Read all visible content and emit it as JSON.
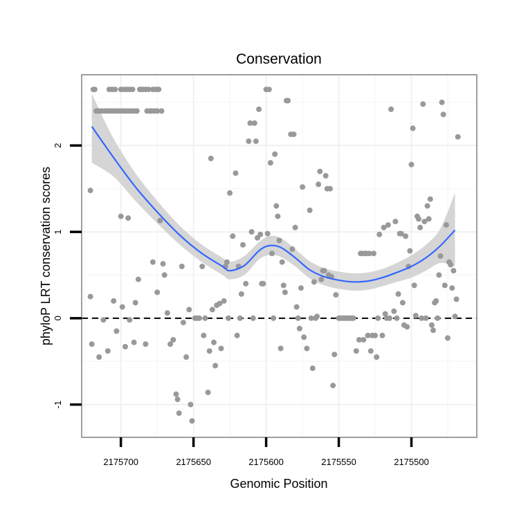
{
  "chart_data": {
    "type": "scatter",
    "title": "Conservation",
    "xlabel": "Genomic Position",
    "ylabel": "phyloP LRT conservation scores",
    "x_reversed": true,
    "xlim": [
      2175727,
      2175455
    ],
    "ylim": [
      -1.38,
      2.82
    ],
    "x_ticks": [
      2175700,
      2175650,
      2175600,
      2175550,
      2175500
    ],
    "x_tick_labels": [
      "2175700",
      "2175650",
      "2175600",
      "2175550",
      "2175500"
    ],
    "y_ticks": [
      -1,
      0,
      1,
      2
    ],
    "y_tick_labels": [
      "-1",
      "0",
      "1",
      "2"
    ],
    "grid": true,
    "reference_line": {
      "y": 0,
      "style": "dashed"
    },
    "colors": {
      "points": "#999999",
      "smooth": "#3366ff",
      "band": "#d3d3d3",
      "grid": "#f0f0f0",
      "panel_border": "#7f7f7f",
      "reference_line": "#000000"
    },
    "points": [
      [
        2175719,
        2.65
      ],
      [
        2175718,
        2.65
      ],
      [
        2175717,
        2.4
      ],
      [
        2175716,
        2.4
      ],
      [
        2175715,
        2.4
      ],
      [
        2175713,
        2.4
      ],
      [
        2175711,
        2.4
      ],
      [
        2175709,
        2.4
      ],
      [
        2175708,
        2.65
      ],
      [
        2175707,
        2.4
      ],
      [
        2175706,
        2.65
      ],
      [
        2175705,
        2.4
      ],
      [
        2175704,
        2.65
      ],
      [
        2175703,
        2.4
      ],
      [
        2175701,
        2.4
      ],
      [
        2175700,
        2.65
      ],
      [
        2175699,
        2.4
      ],
      [
        2175698,
        2.65
      ],
      [
        2175697,
        2.4
      ],
      [
        2175696,
        2.65
      ],
      [
        2175695,
        2.4
      ],
      [
        2175694,
        2.65
      ],
      [
        2175693,
        2.4
      ],
      [
        2175692,
        2.65
      ],
      [
        2175691,
        2.4
      ],
      [
        2175689,
        2.4
      ],
      [
        2175687,
        2.65
      ],
      [
        2175686,
        2.65
      ],
      [
        2175685,
        2.65
      ],
      [
        2175683,
        2.65
      ],
      [
        2175682,
        2.4
      ],
      [
        2175681,
        2.65
      ],
      [
        2175680,
        2.4
      ],
      [
        2175679,
        2.4
      ],
      [
        2175678,
        2.65
      ],
      [
        2175677,
        2.4
      ],
      [
        2175676,
        2.65
      ],
      [
        2175675,
        2.4
      ],
      [
        2175674,
        2.65
      ],
      [
        2175672,
        2.4
      ],
      [
        2175721,
        1.48
      ],
      [
        2175721,
        0.25
      ],
      [
        2175720,
        -0.3
      ],
      [
        2175715,
        -0.45
      ],
      [
        2175712,
        -0.02
      ],
      [
        2175709,
        -0.38
      ],
      [
        2175705,
        0.2
      ],
      [
        2175703,
        -0.15
      ],
      [
        2175700,
        1.18
      ],
      [
        2175699,
        0.13
      ],
      [
        2175697,
        -0.33
      ],
      [
        2175695,
        1.16
      ],
      [
        2175694,
        -0.02
      ],
      [
        2175690,
        0.18
      ],
      [
        2175691,
        -0.28
      ],
      [
        2175688,
        0.45
      ],
      [
        2175683,
        -0.3
      ],
      [
        2175678,
        0.65
      ],
      [
        2175675,
        0.3
      ],
      [
        2175673,
        1.13
      ],
      [
        2175671,
        0.63
      ],
      [
        2175670,
        0.5
      ],
      [
        2175668,
        0.06
      ],
      [
        2175666,
        -0.3
      ],
      [
        2175664,
        -0.25
      ],
      [
        2175662,
        -0.88
      ],
      [
        2175661,
        -0.94
      ],
      [
        2175660,
        -1.1
      ],
      [
        2175658,
        0.6
      ],
      [
        2175657,
        -0.05
      ],
      [
        2175655,
        -0.45
      ],
      [
        2175653,
        0.1
      ],
      [
        2175652,
        -1.0
      ],
      [
        2175651,
        -1.19
      ],
      [
        2175649,
        0.0
      ],
      [
        2175648,
        0.0
      ],
      [
        2175647,
        0.0
      ],
      [
        2175646,
        0.0
      ],
      [
        2175644,
        0.6
      ],
      [
        2175643,
        -0.2
      ],
      [
        2175642,
        0.0
      ],
      [
        2175640,
        -0.86
      ],
      [
        2175639,
        -0.38
      ],
      [
        2175638,
        1.85
      ],
      [
        2175637,
        0.1
      ],
      [
        2175636,
        -0.28
      ],
      [
        2175635,
        -0.55
      ],
      [
        2175634,
        0.15
      ],
      [
        2175632,
        0.17
      ],
      [
        2175631,
        -0.35
      ],
      [
        2175629,
        0.2
      ],
      [
        2175628,
        0.6
      ],
      [
        2175627,
        0.65
      ],
      [
        2175626,
        0.0
      ],
      [
        2175625,
        1.45
      ],
      [
        2175623,
        0.95
      ],
      [
        2175621,
        1.68
      ],
      [
        2175620,
        -0.2
      ],
      [
        2175619,
        0.6
      ],
      [
        2175618,
        0.0
      ],
      [
        2175617,
        0.28
      ],
      [
        2175616,
        0.85
      ],
      [
        2175614,
        0.4
      ],
      [
        2175612,
        2.05
      ],
      [
        2175611,
        2.26
      ],
      [
        2175610,
        1.0
      ],
      [
        2175609,
        0.0
      ],
      [
        2175608,
        2.26
      ],
      [
        2175607,
        2.05
      ],
      [
        2175606,
        0.93
      ],
      [
        2175605,
        2.42
      ],
      [
        2175604,
        0.97
      ],
      [
        2175603,
        0.4
      ],
      [
        2175602,
        0.4
      ],
      [
        2175600,
        2.65
      ],
      [
        2175599,
        0.98
      ],
      [
        2175598,
        2.65
      ],
      [
        2175597,
        1.8
      ],
      [
        2175596,
        0.75
      ],
      [
        2175595,
        0.0
      ],
      [
        2175594,
        1.9
      ],
      [
        2175593,
        1.3
      ],
      [
        2175592,
        1.18
      ],
      [
        2175591,
        0.9
      ],
      [
        2175590,
        -0.35
      ],
      [
        2175589,
        0.65
      ],
      [
        2175588,
        0.38
      ],
      [
        2175587,
        0.3
      ],
      [
        2175586,
        2.52
      ],
      [
        2175585,
        2.52
      ],
      [
        2175583,
        2.13
      ],
      [
        2175582,
        0.8
      ],
      [
        2175581,
        2.13
      ],
      [
        2175580,
        1.05
      ],
      [
        2175579,
        0.13
      ],
      [
        2175578,
        0.0
      ],
      [
        2175577,
        -0.12
      ],
      [
        2175576,
        0.35
      ],
      [
        2175575,
        1.52
      ],
      [
        2175574,
        -0.22
      ],
      [
        2175572,
        -0.35
      ],
      [
        2175570,
        1.25
      ],
      [
        2175569,
        0.0
      ],
      [
        2175568,
        -0.58
      ],
      [
        2175567,
        0.42
      ],
      [
        2175566,
        0.0
      ],
      [
        2175565,
        0.02
      ],
      [
        2175564,
        1.55
      ],
      [
        2175563,
        1.7
      ],
      [
        2175562,
        0.45
      ],
      [
        2175561,
        0.55
      ],
      [
        2175560,
        0.55
      ],
      [
        2175559,
        1.65
      ],
      [
        2175558,
        1.5
      ],
      [
        2175557,
        0.5
      ],
      [
        2175556,
        1.5
      ],
      [
        2175555,
        0.48
      ],
      [
        2175554,
        -0.78
      ],
      [
        2175553,
        -0.42
      ],
      [
        2175552,
        0.27
      ],
      [
        2175550,
        0.0
      ],
      [
        2175549,
        0.0
      ],
      [
        2175548,
        0.0
      ],
      [
        2175547,
        0.0
      ],
      [
        2175546,
        0.0
      ],
      [
        2175545,
        0.0
      ],
      [
        2175544,
        0.0
      ],
      [
        2175543,
        0.0
      ],
      [
        2175542,
        0.0
      ],
      [
        2175541,
        0.0
      ],
      [
        2175540,
        0.0
      ],
      [
        2175538,
        -0.38
      ],
      [
        2175536,
        -0.25
      ],
      [
        2175535,
        0.75
      ],
      [
        2175534,
        0.75
      ],
      [
        2175533,
        -0.25
      ],
      [
        2175532,
        0.75
      ],
      [
        2175531,
        0.75
      ],
      [
        2175530,
        -0.2
      ],
      [
        2175529,
        0.75
      ],
      [
        2175528,
        -0.38
      ],
      [
        2175527,
        -0.2
      ],
      [
        2175526,
        0.75
      ],
      [
        2175525,
        -0.2
      ],
      [
        2175524,
        -0.45
      ],
      [
        2175523,
        0.0
      ],
      [
        2175522,
        0.97
      ],
      [
        2175520,
        -0.2
      ],
      [
        2175519,
        1.05
      ],
      [
        2175518,
        0.05
      ],
      [
        2175517,
        0.0
      ],
      [
        2175516,
        1.08
      ],
      [
        2175515,
        0.0
      ],
      [
        2175514,
        2.42
      ],
      [
        2175512,
        0.08
      ],
      [
        2175511,
        1.12
      ],
      [
        2175510,
        0.0
      ],
      [
        2175509,
        0.28
      ],
      [
        2175508,
        0.98
      ],
      [
        2175507,
        0.98
      ],
      [
        2175506,
        0.18
      ],
      [
        2175505,
        -0.08
      ],
      [
        2175504,
        0.95
      ],
      [
        2175503,
        -0.1
      ],
      [
        2175502,
        0.6
      ],
      [
        2175501,
        0.78
      ],
      [
        2175500,
        1.78
      ],
      [
        2175499,
        2.2
      ],
      [
        2175498,
        0.38
      ],
      [
        2175497,
        0.03
      ],
      [
        2175496,
        1.18
      ],
      [
        2175495,
        1.15
      ],
      [
        2175494,
        1.05
      ],
      [
        2175493,
        0.0
      ],
      [
        2175492,
        2.48
      ],
      [
        2175491,
        1.12
      ],
      [
        2175490,
        0.0
      ],
      [
        2175489,
        1.3
      ],
      [
        2175488,
        1.15
      ],
      [
        2175487,
        1.38
      ],
      [
        2175486,
        -0.08
      ],
      [
        2175485,
        -0.14
      ],
      [
        2175484,
        0.18
      ],
      [
        2175483,
        0.2
      ],
      [
        2175482,
        0.0
      ],
      [
        2175481,
        0.5
      ],
      [
        2175480,
        0.72
      ],
      [
        2175479,
        2.5
      ],
      [
        2175478,
        2.36
      ],
      [
        2175477,
        0.38
      ],
      [
        2175476,
        1.08
      ],
      [
        2175475,
        -0.23
      ],
      [
        2175474,
        0.65
      ],
      [
        2175473,
        0.62
      ],
      [
        2175472,
        0.35
      ],
      [
        2175471,
        0.55
      ],
      [
        2175470,
        0.02
      ],
      [
        2175469,
        0.22
      ],
      [
        2175468,
        2.1
      ]
    ],
    "smooth": {
      "method": "loess",
      "x": [
        2175720,
        2175705,
        2175690,
        2175675,
        2175660,
        2175645,
        2175630,
        2175625,
        2175615,
        2175605,
        2175598,
        2175590,
        2175580,
        2175570,
        2175560,
        2175550,
        2175540,
        2175530,
        2175520,
        2175510,
        2175500,
        2175490,
        2175480,
        2175470
      ],
      "y": [
        2.22,
        1.86,
        1.52,
        1.23,
        0.97,
        0.76,
        0.6,
        0.55,
        0.61,
        0.78,
        0.84,
        0.82,
        0.7,
        0.56,
        0.48,
        0.44,
        0.42,
        0.43,
        0.47,
        0.53,
        0.6,
        0.7,
        0.84,
        1.02
      ],
      "lower": [
        1.8,
        1.64,
        1.36,
        1.1,
        0.86,
        0.66,
        0.5,
        0.45,
        0.5,
        0.68,
        0.73,
        0.71,
        0.6,
        0.46,
        0.38,
        0.34,
        0.32,
        0.33,
        0.37,
        0.42,
        0.47,
        0.55,
        0.64,
        0.6
      ],
      "upper": [
        2.6,
        2.08,
        1.68,
        1.36,
        1.08,
        0.86,
        0.7,
        0.65,
        0.72,
        0.88,
        0.95,
        0.93,
        0.8,
        0.66,
        0.58,
        0.54,
        0.52,
        0.53,
        0.57,
        0.64,
        0.73,
        0.85,
        1.04,
        1.45
      ]
    }
  }
}
